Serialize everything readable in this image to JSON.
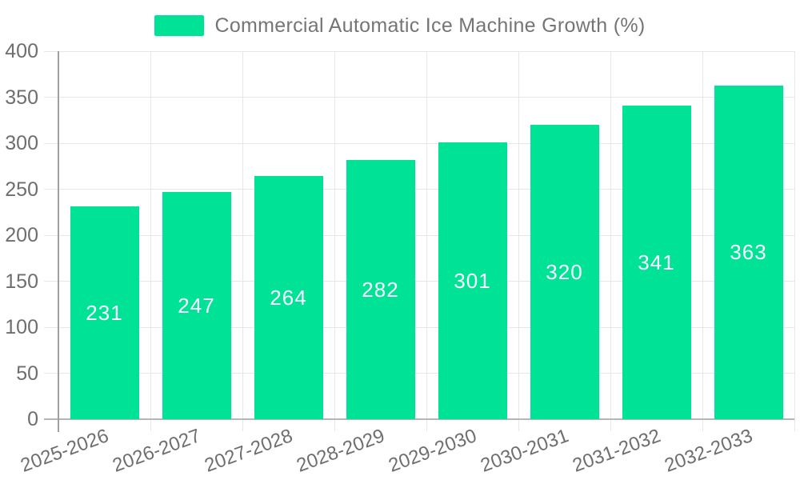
{
  "legend": {
    "series_label": "Commercial Automatic Ice Machine Growth (%)"
  },
  "chart_data": {
    "type": "bar",
    "title": "Commercial Automatic Ice Machine Growth (%)",
    "categories": [
      "2025-2026",
      "2026-2027",
      "2027-2028",
      "2028-2029",
      "2029-2030",
      "2030-2031",
      "2031-2032",
      "2032-2033"
    ],
    "values": [
      231,
      247,
      264,
      282,
      301,
      320,
      341,
      363
    ],
    "xlabel": "",
    "ylabel": "",
    "ylim": [
      0,
      400
    ],
    "yticks": [
      0,
      50,
      100,
      150,
      200,
      250,
      300,
      350,
      400
    ],
    "grid": true,
    "legend_position": "top",
    "data_labels": "inside-center",
    "x_label_rotation_deg": -20,
    "colors": {
      "bar": "#00E396",
      "bar_label_text": "#ffffff",
      "grid_line": "#e7e7e7",
      "y_axis_line": "#a0a0a0",
      "x_axis_line": "#b6b6b6",
      "tick_text": "#6e6e6e",
      "legend_text": "#757575"
    }
  }
}
